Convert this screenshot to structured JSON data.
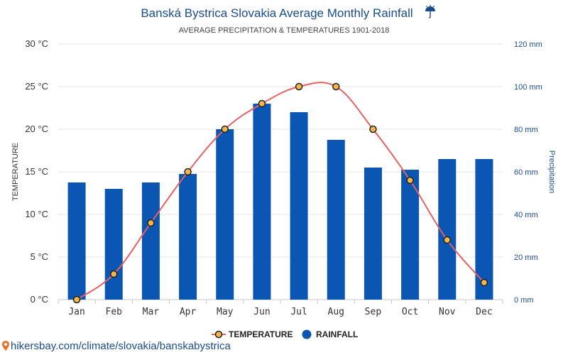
{
  "chart_data": {
    "type": "bar",
    "title": "Banská Bystrica Slovakia Average Monthly Rainfall",
    "title_icon": "umbrella-rain-icon",
    "subtitle": "AVERAGE PRECIPITATION & TEMPERATURES 1901-2018",
    "categories": [
      "Jan",
      "Feb",
      "Mar",
      "Apr",
      "May",
      "Jun",
      "Jul",
      "Aug",
      "Sep",
      "Oct",
      "Nov",
      "Dec"
    ],
    "series": [
      {
        "name": "RAINFALL",
        "type": "bar",
        "axis": "right",
        "color": "#0b56b3",
        "values": [
          55,
          52,
          55,
          59,
          80,
          92,
          88,
          75,
          62,
          61,
          66,
          66
        ]
      },
      {
        "name": "TEMPERATURE",
        "type": "line",
        "axis": "left",
        "color": "#e86060",
        "marker_fill": "#f2b84b",
        "values": [
          0,
          3,
          9,
          15,
          20,
          23,
          25,
          25,
          20,
          14,
          7,
          2
        ]
      }
    ],
    "y_left": {
      "label": "TEMPERATURE",
      "unit": "°C",
      "ylim": [
        0,
        30
      ],
      "ticks": [
        "0 °C",
        "5 °C",
        "10 °C",
        "15 °C",
        "20 °C",
        "25 °C",
        "30 °C"
      ]
    },
    "y_right": {
      "label": "Precipitation",
      "unit": "mm",
      "ylim": [
        0,
        120
      ],
      "ticks": [
        "0 mm",
        "20 mm",
        "40 mm",
        "60 mm",
        "80 mm",
        "100 mm",
        "120 mm"
      ]
    },
    "grid": true,
    "legend": {
      "placement": "bottom-center",
      "items": [
        "TEMPERATURE",
        "RAINFALL"
      ]
    }
  },
  "footer": {
    "source_link": "hikersbay.com/climate/slovakia/banskabystrica",
    "source_icon": "map-pin-icon"
  }
}
